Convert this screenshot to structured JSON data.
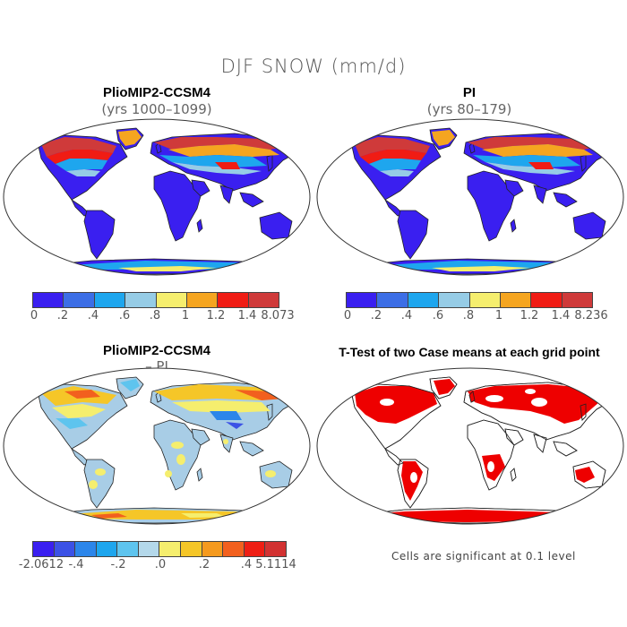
{
  "figure_title": "DJF SNOW (mm/d)",
  "panels": [
    {
      "title": "PlioMIP2-CCSM4",
      "subtitle": "(yrs 1000–1099)"
    },
    {
      "title": "PI",
      "subtitle": "(yrs 80–179)"
    },
    {
      "title": "PlioMIP2-CCSM4",
      "subtitle": "– PI"
    },
    {
      "title": "T-Test of two Case means at each grid point",
      "subtitle": ""
    }
  ],
  "colorbars": {
    "snow": {
      "colors": [
        "#3a1ff0",
        "#3c6ee6",
        "#1ea6ee",
        "#96cce6",
        "#f5ee6e",
        "#f5a520",
        "#f01c14",
        "#cf3a3a"
      ],
      "ticks": [
        "0",
        ".2",
        ".4",
        ".6",
        ".8",
        "1",
        "1.2",
        "1.4"
      ]
    },
    "snow_max_a": "8.073",
    "snow_max_b": "8.236",
    "diff": {
      "colors": [
        "#3a1ff0",
        "#3c52e6",
        "#2c86ea",
        "#1ea6ee",
        "#5ec4ee",
        "#b4d8ea",
        "#f5ee6e",
        "#f5c628",
        "#f59a1e",
        "#f2601e",
        "#ee1e14",
        "#d23232"
      ],
      "ticks": [
        "-2.0612",
        "-.4",
        "-.2",
        ".0",
        ".2",
        ".4",
        "5.1114"
      ]
    }
  },
  "note": "Cells are significant at 0.1 level",
  "map_colors": {
    "ocean": "#ffffff",
    "land_low": "#3a1ff0",
    "diff_base": "#a8cde6",
    "signif": "#ee0000"
  }
}
